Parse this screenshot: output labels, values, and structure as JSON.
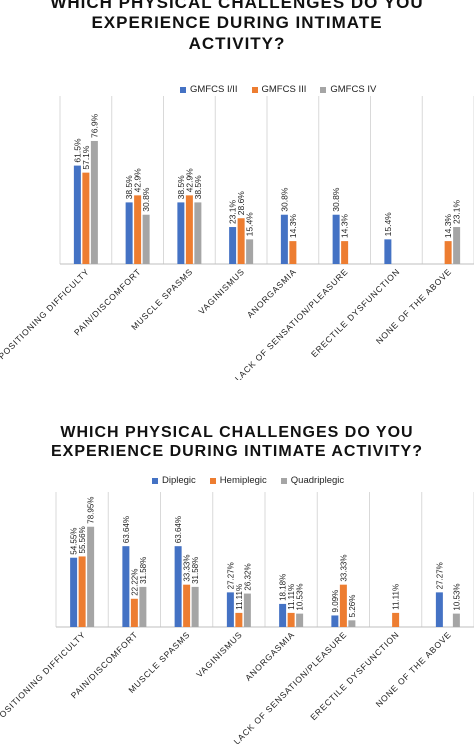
{
  "chart_data": [
    {
      "type": "bar",
      "title_lines": [
        "WHICH PHYSICAL CHALLENGES DO YOU",
        "EXPERIENCE DURING INTIMATE",
        "ACTIVITY?"
      ],
      "categories": [
        "POSITIONING DIFFICULTY",
        "PAIN/DISCOMFORT",
        "MUSCLE SPASMS",
        "VAGINISMUS",
        "ANORGASMIA",
        "LACK OF SENSATION/PLEASURE",
        "ERECTILE DYSFUNCTION",
        "NONE OF THE ABOVE"
      ],
      "series": [
        {
          "name": "GMFCS I/II",
          "color": "#4472C4",
          "values": [
            61.5,
            38.5,
            38.5,
            23.1,
            30.8,
            30.8,
            15.4,
            null
          ],
          "labels": [
            "61.5%",
            "38.5%",
            "38.5%",
            "23.1%",
            "30.8%",
            "30.8%",
            "15.4%",
            ""
          ]
        },
        {
          "name": "GMFCS III",
          "color": "#ED7D31",
          "values": [
            57.1,
            42.9,
            42.9,
            28.6,
            14.3,
            14.3,
            null,
            14.3
          ],
          "labels": [
            "57.1%",
            "42.9%",
            "42.9%",
            "28.6%",
            "14.3%",
            "14.3%",
            "",
            "14.3%"
          ]
        },
        {
          "name": "GMFCS IV",
          "color": "#A5A5A5",
          "values": [
            76.9,
            30.8,
            38.5,
            15.4,
            null,
            null,
            null,
            23.1
          ],
          "labels": [
            "76.9%",
            "30.8%",
            "38.5%",
            "15.4%",
            "",
            "",
            "",
            "23.1%"
          ]
        }
      ],
      "ylim": [
        0,
        100
      ],
      "legend_position": "top",
      "grid": "vertical category separators"
    },
    {
      "type": "bar",
      "title_lines": [
        "WHICH PHYSICAL CHALLENGES DO YOU",
        "EXPERIENCE DURING INTIMATE ACTIVITY?"
      ],
      "categories": [
        "POSITIONING DIFFICULTY",
        "PAIN/DISCOMFORT",
        "MUSCLE SPASMS",
        "VAGINISMUS",
        "ANORGASMIA",
        "LACK OF SENSATION/PLEASURE",
        "ERECTILE DYSFUNCTION",
        "NONE OF THE ABOVE"
      ],
      "series": [
        {
          "name": "Diplegic",
          "color": "#4472C4",
          "values": [
            54.55,
            63.64,
            63.64,
            27.27,
            18.18,
            9.09,
            null,
            27.27
          ],
          "labels": [
            "54.55%",
            "63.64%",
            "63.64%",
            "27.27%",
            "18.18%",
            "9.09%",
            "",
            "27.27%"
          ]
        },
        {
          "name": "Hemiplegic",
          "color": "#ED7D31",
          "values": [
            55.56,
            22.22,
            33.33,
            11.11,
            11.11,
            33.33,
            11.11,
            null
          ],
          "labels": [
            "55.56%",
            "22.22%",
            "33.33%",
            "11.11%",
            "11.11%",
            "33.33%",
            "11.11%",
            ""
          ]
        },
        {
          "name": "Quadriplegic",
          "color": "#A5A5A5",
          "values": [
            78.95,
            31.58,
            31.58,
            26.32,
            10.53,
            5.26,
            null,
            10.53
          ],
          "labels": [
            "78.95%",
            "31.58%",
            "31.58%",
            "26.32%",
            "10.53%",
            "5.26%",
            "",
            "10.53%"
          ]
        }
      ],
      "ylim": [
        0,
        100
      ],
      "legend_position": "top",
      "grid": "vertical category separators"
    }
  ]
}
